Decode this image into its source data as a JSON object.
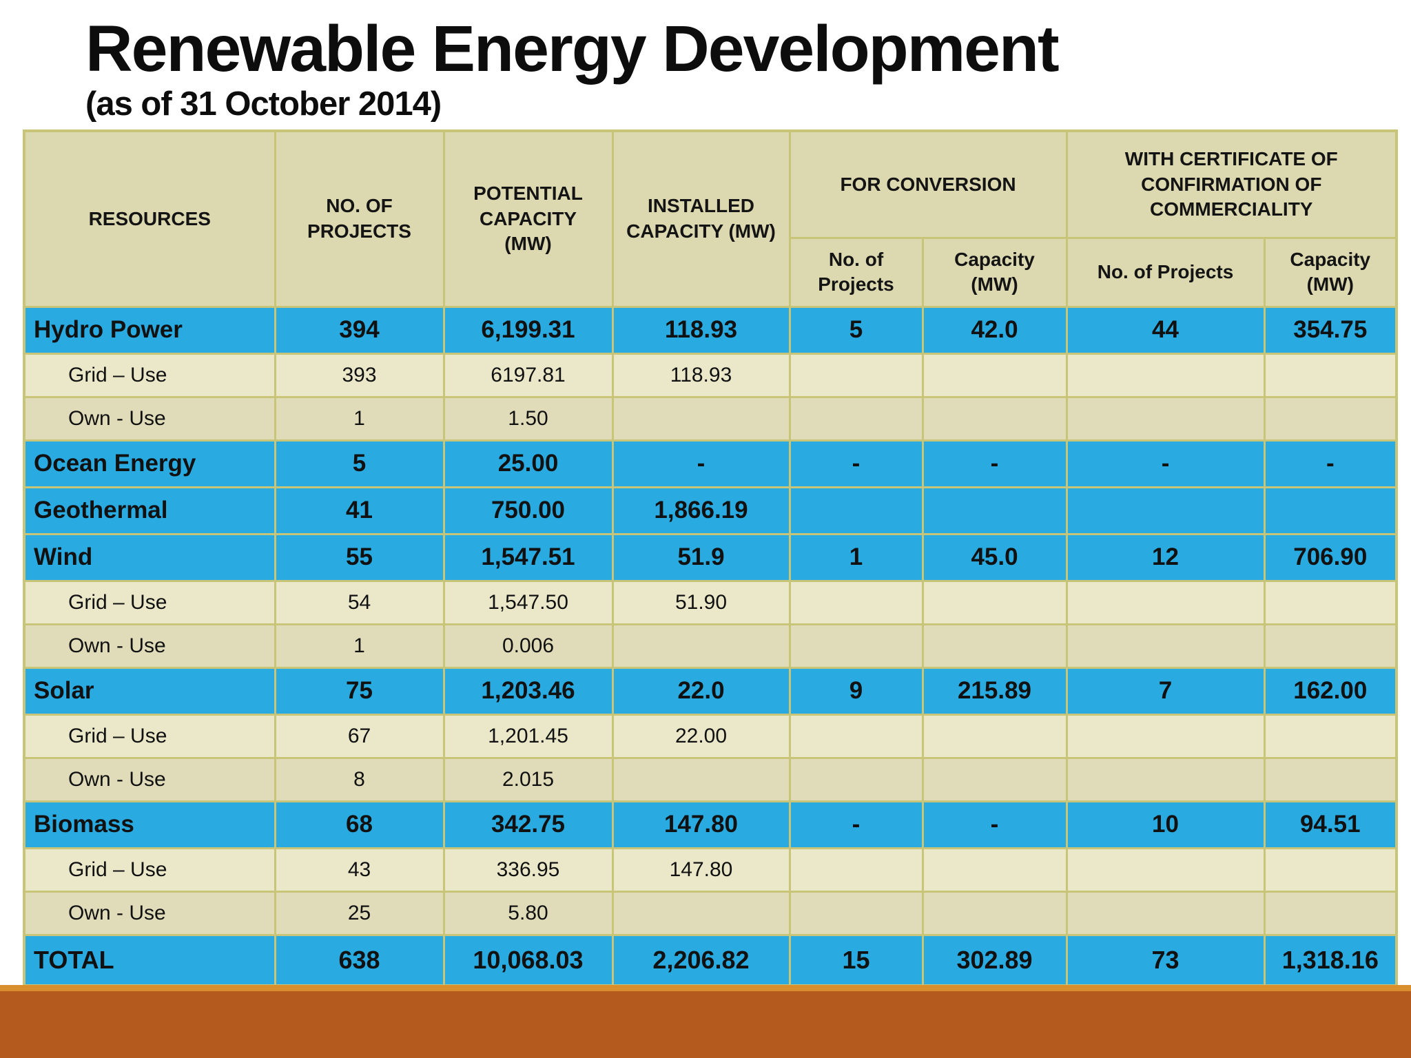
{
  "slide": {
    "title": "Renewable Energy Development",
    "subtitle": "(as of 31 October 2014)"
  },
  "table": {
    "header": {
      "resources": "RESOURCES",
      "no_of_projects": "NO. OF PROJECTS",
      "potential_capacity": "POTENTIAL CAPACITY (MW)",
      "installed_capacity": "INSTALLED CAPACITY (MW)",
      "for_conversion": "FOR CONVERSION",
      "with_certificate": "WITH CERTIFICATE OF CONFIRMATION OF COMMERCIALITY",
      "fc_no_of_projects": "No. of Projects",
      "fc_capacity": "Capacity (MW)",
      "wc_no_of_projects": "No. of Projects",
      "wc_capacity": "Capacity (MW)"
    },
    "rows": [
      {
        "type": "category",
        "label": "Hydro Power",
        "values": [
          "394",
          "6,199.31",
          "118.93",
          "5",
          "42.0",
          "44",
          "354.75"
        ]
      },
      {
        "type": "sub",
        "variant": "grid",
        "label": "Grid – Use",
        "values": [
          "393",
          "6197.81",
          "118.93",
          "",
          "",
          "",
          ""
        ]
      },
      {
        "type": "sub",
        "variant": "own",
        "label": "Own - Use",
        "values": [
          "1",
          "1.50",
          "",
          "",
          "",
          "",
          ""
        ]
      },
      {
        "type": "category",
        "label": "Ocean Energy",
        "values": [
          "5",
          "25.00",
          "-",
          "-",
          "-",
          "-",
          "-"
        ]
      },
      {
        "type": "category",
        "label": "Geothermal",
        "values": [
          "41",
          "750.00",
          "1,866.19",
          "",
          "",
          "",
          ""
        ]
      },
      {
        "type": "category",
        "label": "Wind",
        "values": [
          "55",
          "1,547.51",
          "51.9",
          "1",
          "45.0",
          "12",
          "706.90"
        ]
      },
      {
        "type": "sub",
        "variant": "grid",
        "label": "Grid – Use",
        "values": [
          "54",
          "1,547.50",
          "51.90",
          "",
          "",
          "",
          ""
        ]
      },
      {
        "type": "sub",
        "variant": "own",
        "label": "Own - Use",
        "values": [
          "1",
          "0.006",
          "",
          "",
          "",
          "",
          ""
        ]
      },
      {
        "type": "category",
        "label": "Solar",
        "values": [
          "75",
          "1,203.46",
          "22.0",
          "9",
          "215.89",
          "7",
          "162.00"
        ]
      },
      {
        "type": "sub",
        "variant": "grid",
        "label": "Grid – Use",
        "values": [
          "67",
          "1,201.45",
          "22.00",
          "",
          "",
          "",
          ""
        ]
      },
      {
        "type": "sub",
        "variant": "own",
        "label": "Own - Use",
        "values": [
          "8",
          "2.015",
          "",
          "",
          "",
          "",
          ""
        ]
      },
      {
        "type": "category",
        "label": "Biomass",
        "values": [
          "68",
          "342.75",
          "147.80",
          "-",
          "-",
          "10",
          "94.51"
        ]
      },
      {
        "type": "sub",
        "variant": "grid",
        "label": "Grid – Use",
        "values": [
          "43",
          "336.95",
          "147.80",
          "",
          "",
          "",
          ""
        ]
      },
      {
        "type": "sub",
        "variant": "own",
        "label": "Own - Use",
        "values": [
          "25",
          "5.80",
          "",
          "",
          "",
          "",
          ""
        ]
      },
      {
        "type": "total",
        "label": "TOTAL",
        "values": [
          "638",
          "10,068.03",
          "2,206.82",
          "15",
          "302.89",
          "73",
          "1,318.16"
        ]
      }
    ]
  },
  "colors": {
    "row_highlight": "#29ABE2",
    "header_bg": "#DCD8AF",
    "sub_row_bg_grid": "#EBE8CA",
    "sub_row_bg_own": "#E0DCB9",
    "border": "#C9C578",
    "bottom_bar": "#B55A1E",
    "bottom_bar_accent": "#D98F2D"
  }
}
